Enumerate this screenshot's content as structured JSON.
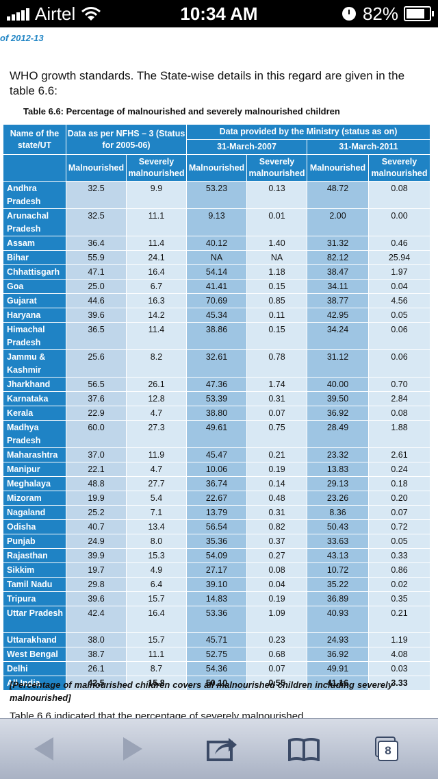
{
  "status_bar": {
    "carrier": "Airtel",
    "time": "10:34 AM",
    "battery": "82%",
    "battery_level": 0.82,
    "icons": [
      "signal-icon",
      "wifi-icon",
      "clock-icon",
      "battery-icon"
    ]
  },
  "doc": {
    "header": "of 2012-13",
    "paragraph": "WHO growth standards.  The State-wise details in this regard are given in the table 6.6:",
    "caption": "Table 6.6: Percentage of malnourished and severely malnourished children",
    "note": "[Percentage of malnourished children covers all malnourished children including severely malnourished]",
    "cut_text": "Table 6.6 indicated that the percentage of severely malnourished"
  },
  "table": {
    "header": {
      "state_col": "Name of the state/UT",
      "nfhs": "Data as per NFHS – 3 (Status for 2005-06)",
      "ministry": "Data provided by the Ministry (status as on)",
      "date_2007": "31-March-2007",
      "date_2011": "31-March-2011",
      "malnourished": "Malnourished",
      "severely": "Severely malnourished"
    },
    "rows": [
      {
        "state": "Andhra Pradesh",
        "v": [
          "32.5",
          "9.9",
          "53.23",
          "0.13",
          "48.72",
          "0.08"
        ]
      },
      {
        "state": "Arunachal Pradesh",
        "v": [
          "32.5",
          "11.1",
          "9.13",
          "0.01",
          "2.00",
          "0.00"
        ]
      },
      {
        "state": "Assam",
        "v": [
          "36.4",
          "11.4",
          "40.12",
          "1.40",
          "31.32",
          "0.46"
        ]
      },
      {
        "state": "Bihar",
        "v": [
          "55.9",
          "24.1",
          "NA",
          "NA",
          "82.12",
          "25.94"
        ]
      },
      {
        "state": "Chhattisgarh",
        "v": [
          "47.1",
          "16.4",
          "54.14",
          "1.18",
          "38.47",
          "1.97"
        ]
      },
      {
        "state": "Goa",
        "v": [
          "25.0",
          "6.7",
          "41.41",
          "0.15",
          "34.11",
          "0.04"
        ]
      },
      {
        "state": "Gujarat",
        "v": [
          "44.6",
          "16.3",
          "70.69",
          "0.85",
          "38.77",
          "4.56"
        ]
      },
      {
        "state": "Haryana",
        "v": [
          "39.6",
          "14.2",
          "45.34",
          "0.11",
          "42.95",
          "0.05"
        ]
      },
      {
        "state": "Himachal Pradesh",
        "v": [
          "36.5",
          "11.4",
          "38.86",
          "0.15",
          "34.24",
          "0.06"
        ]
      },
      {
        "state": "Jammu & Kashmir",
        "v": [
          "25.6",
          "8.2",
          "32.61",
          "0.78",
          "31.12",
          "0.06"
        ]
      },
      {
        "state": "Jharkhand",
        "v": [
          "56.5",
          "26.1",
          "47.36",
          "1.74",
          "40.00",
          "0.70"
        ]
      },
      {
        "state": "Karnataka",
        "v": [
          "37.6",
          "12.8",
          "53.39",
          "0.31",
          "39.50",
          "2.84"
        ]
      },
      {
        "state": "Kerala",
        "v": [
          "22.9",
          "4.7",
          "38.80",
          "0.07",
          "36.92",
          "0.08"
        ]
      },
      {
        "state": "Madhya Pradesh",
        "v": [
          "60.0",
          "27.3",
          "49.61",
          "0.75",
          "28.49",
          "1.88"
        ]
      },
      {
        "state": "Maharashtra",
        "v": [
          "37.0",
          "11.9",
          "45.47",
          "0.21",
          "23.32",
          "2.61"
        ]
      },
      {
        "state": "Manipur",
        "v": [
          "22.1",
          "4.7",
          "10.06",
          "0.19",
          "13.83",
          "0.24"
        ]
      },
      {
        "state": "Meghalaya",
        "v": [
          "48.8",
          "27.7",
          "36.74",
          "0.14",
          "29.13",
          "0.18"
        ]
      },
      {
        "state": "Mizoram",
        "v": [
          "19.9",
          "5.4",
          "22.67",
          "0.48",
          "23.26",
          "0.20"
        ]
      },
      {
        "state": "Nagaland",
        "v": [
          "25.2",
          "7.1",
          "13.79",
          "0.31",
          "8.36",
          "0.07"
        ]
      },
      {
        "state": "Odisha",
        "v": [
          "40.7",
          "13.4",
          "56.54",
          "0.82",
          "50.43",
          "0.72"
        ]
      },
      {
        "state": "Punjab",
        "v": [
          "24.9",
          "8.0",
          "35.36",
          "0.37",
          "33.63",
          "0.05"
        ]
      },
      {
        "state": "Rajasthan",
        "v": [
          "39.9",
          "15.3",
          "54.09",
          "0.27",
          "43.13",
          "0.33"
        ]
      },
      {
        "state": "Sikkim",
        "v": [
          "19.7",
          "4.9",
          "27.17",
          "0.08",
          "10.72",
          "0.86"
        ]
      },
      {
        "state": "Tamil Nadu",
        "v": [
          "29.8",
          "6.4",
          "39.10",
          "0.04",
          "35.22",
          "0.02"
        ]
      },
      {
        "state": "Tripura",
        "v": [
          "39.6",
          "15.7",
          "14.83",
          "0.19",
          "36.89",
          "0.35"
        ]
      },
      {
        "state": "Uttar Pradesh",
        "v": [
          "42.4",
          "16.4",
          "53.36",
          "1.09",
          "40.93",
          "0.21"
        ]
      },
      {
        "state": "Uttarakhand",
        "v": [
          "38.0",
          "15.7",
          "45.71",
          "0.23",
          "24.93",
          "1.19"
        ]
      },
      {
        "state": "West Bengal",
        "v": [
          "38.7",
          "11.1",
          "52.75",
          "0.68",
          "36.92",
          "4.08"
        ]
      },
      {
        "state": "Delhi",
        "v": [
          "26.1",
          "8.7",
          "54.36",
          "0.07",
          "49.91",
          "0.03"
        ]
      },
      {
        "state": "All India",
        "v": [
          "42.5",
          "15.8",
          "50.10",
          "0.55",
          "41.16",
          "3.33"
        ],
        "total": true
      }
    ]
  },
  "toolbar": {
    "back_icon": "back-arrow-icon",
    "forward_icon": "forward-arrow-icon",
    "share_icon": "share-icon",
    "bookmarks_icon": "bookmarks-icon",
    "tabs_icon": "tabs-icon",
    "tabs_count": "8"
  }
}
